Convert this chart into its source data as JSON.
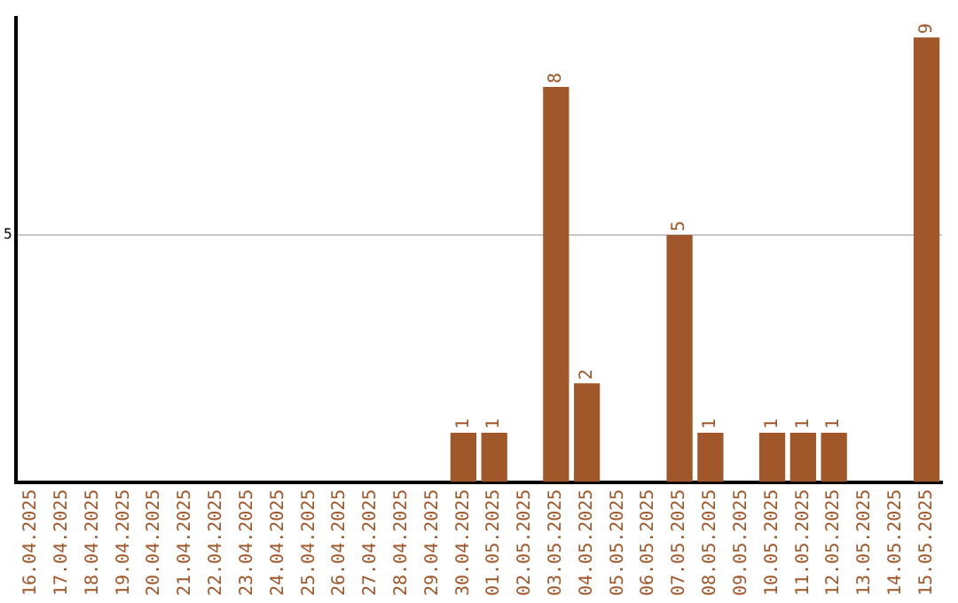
{
  "chart_data": {
    "type": "bar",
    "categories": [
      "16.04.2025",
      "17.04.2025",
      "18.04.2025",
      "19.04.2025",
      "20.04.2025",
      "21.04.2025",
      "22.04.2025",
      "23.04.2025",
      "24.04.2025",
      "25.04.2025",
      "26.04.2025",
      "27.04.2025",
      "28.04.2025",
      "29.04.2025",
      "30.04.2025",
      "01.05.2025",
      "02.05.2025",
      "03.05.2025",
      "04.05.2025",
      "05.05.2025",
      "06.05.2025",
      "07.05.2025",
      "08.05.2025",
      "09.05.2025",
      "10.05.2025",
      "11.05.2025",
      "12.05.2025",
      "13.05.2025",
      "14.05.2025",
      "15.05.2025"
    ],
    "values": [
      null,
      null,
      null,
      null,
      null,
      null,
      null,
      null,
      null,
      null,
      null,
      null,
      null,
      null,
      1,
      1,
      null,
      8,
      2,
      null,
      null,
      5,
      1,
      null,
      1,
      1,
      1,
      null,
      null,
      9
    ],
    "data_labels": true,
    "color": "#a0572a",
    "ylim": [
      0,
      9.4
    ],
    "yticks": [
      5
    ],
    "grid": "y",
    "legend": false
  }
}
